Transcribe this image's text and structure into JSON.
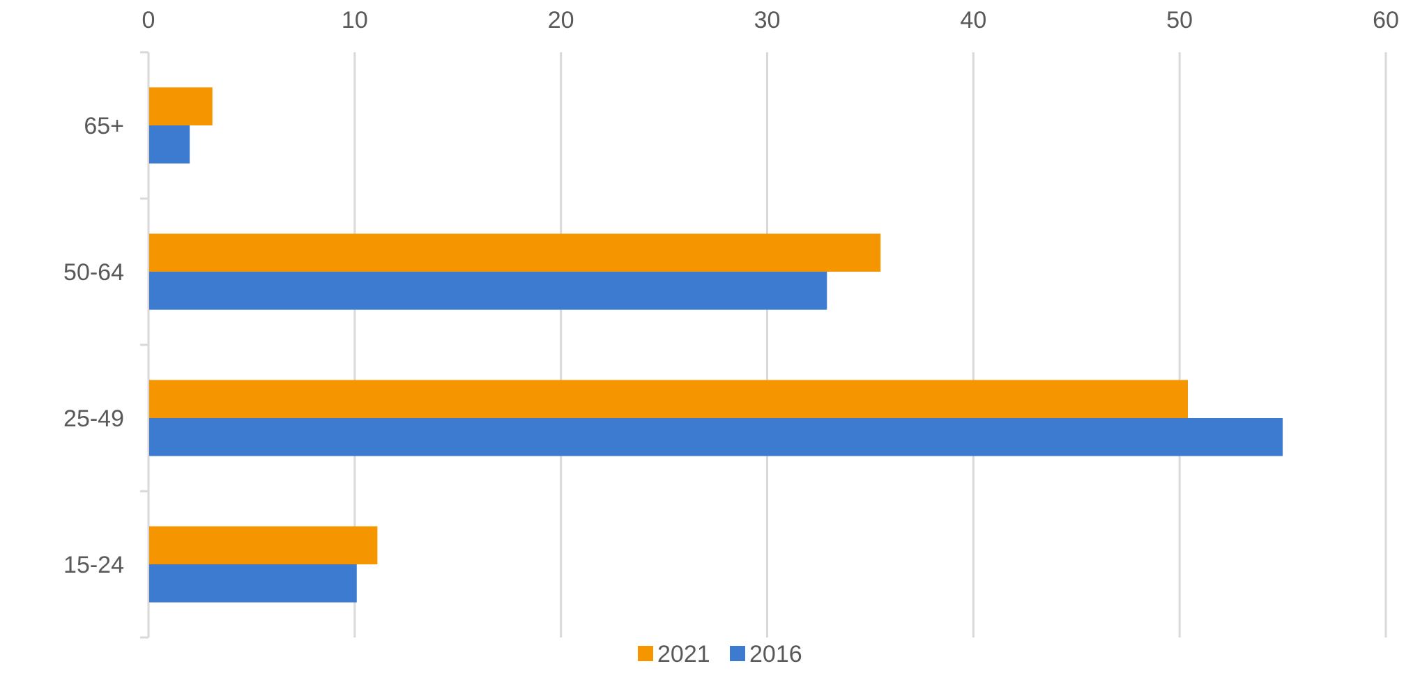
{
  "chart_data": {
    "type": "bar",
    "orientation": "horizontal",
    "title": "",
    "xlabel": "",
    "ylabel": "",
    "categories": [
      "65+",
      "50-64",
      "25-49",
      "15-24"
    ],
    "series": [
      {
        "name": "2021",
        "color": "#F59500",
        "values": [
          3.1,
          35.5,
          50.4,
          11.1
        ]
      },
      {
        "name": "2016",
        "color": "#3C7BD0",
        "values": [
          2.0,
          32.9,
          55.0,
          10.1
        ]
      }
    ],
    "xlim": [
      0,
      60
    ],
    "xticks": [
      0,
      10,
      20,
      30,
      40,
      50,
      60
    ],
    "xtick_labels": [
      "0",
      "10",
      "20",
      "30",
      "40",
      "50",
      "60"
    ],
    "axis_position": "top",
    "grid": true,
    "gridline_color": "#D9D9D9",
    "legend_position": "bottom"
  }
}
